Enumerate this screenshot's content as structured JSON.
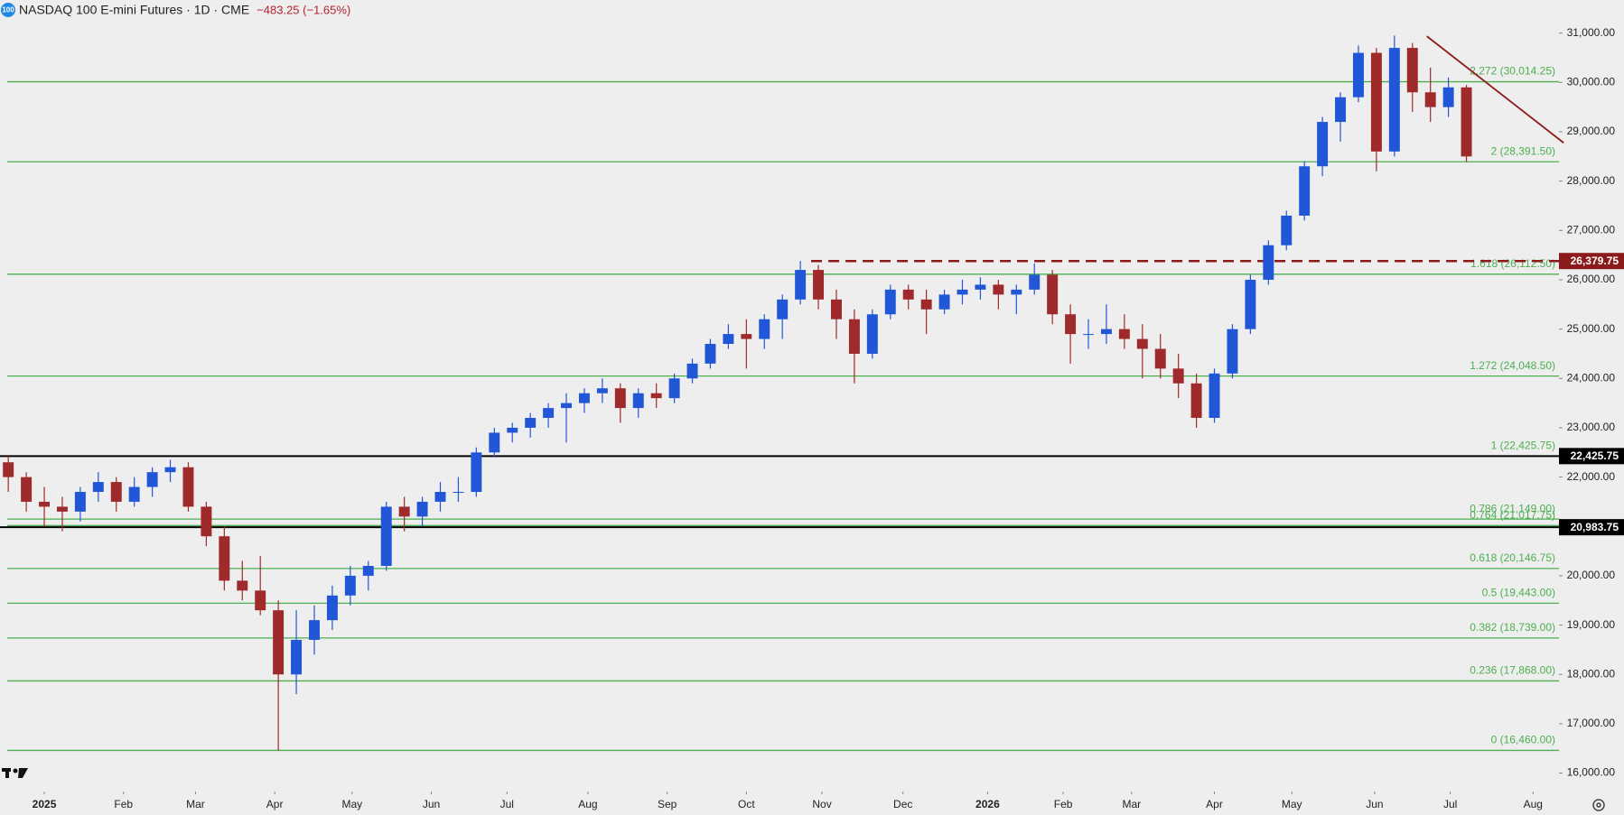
{
  "chart_data": {
    "type": "candlestick",
    "badge": "100",
    "title": "NASDAQ 100 E-mini Futures · 1D · CME",
    "change": "−483.25 (−1.65%)",
    "up_color": "#2157d6",
    "down_color": "#9e2a2b",
    "open": [
      22300,
      22000,
      21500,
      21400,
      21300,
      21700,
      21900,
      21500,
      21800,
      22100,
      22200,
      21400,
      20800,
      19900,
      19700,
      19300,
      18000,
      18700,
      19100,
      19600,
      20000,
      20200,
      21400,
      21200,
      21500,
      21700,
      21700,
      22500,
      22900,
      23000,
      23200,
      23400,
      23500,
      23700,
      23800,
      23400,
      23700,
      23600,
      24000,
      24300,
      24700,
      24900,
      24800,
      25200,
      25600,
      26200,
      25600,
      25200,
      24500,
      25300,
      25800,
      25600,
      25400,
      25700,
      25800,
      25900,
      25700,
      25800,
      26100,
      25300,
      24900,
      24900,
      25000,
      24800,
      24600,
      24200,
      23900,
      23200,
      24100,
      25000,
      26000,
      26700,
      27300,
      28300,
      29200,
      29700,
      30600,
      28600,
      30700,
      29800,
      29500,
      29900
    ],
    "high": [
      22425.75,
      22100,
      21800,
      21600,
      21800,
      22100,
      22000,
      22000,
      22200,
      22350,
      22300,
      21500,
      21000,
      20300,
      20400,
      19500,
      19300,
      19400,
      19800,
      20200,
      20300,
      21500,
      21600,
      21600,
      21900,
      22000,
      22600,
      23000,
      23100,
      23300,
      23500,
      23700,
      23800,
      24000,
      23900,
      23800,
      23900,
      24100,
      24400,
      24800,
      25100,
      25200,
      25300,
      25700,
      26379.75,
      26300,
      25800,
      25400,
      25400,
      25900,
      25900,
      25800,
      25800,
      26000,
      26050,
      26000,
      25900,
      26330,
      26200,
      25500,
      25200,
      25500,
      25300,
      25100,
      24900,
      24500,
      24100,
      24200,
      25100,
      26100,
      26800,
      27400,
      28400,
      29300,
      29800,
      30750,
      30700,
      30950,
      30800,
      30300,
      30100,
      29950
    ],
    "low": [
      21700,
      21300,
      21000,
      20900,
      21100,
      21500,
      21300,
      21400,
      21600,
      21900,
      21300,
      20600,
      19700,
      19500,
      19200,
      16460,
      17600,
      18400,
      18900,
      19400,
      19700,
      20100,
      20900,
      21000,
      21300,
      21500,
      21600,
      22400,
      22700,
      22800,
      23000,
      22700,
      23300,
      23500,
      23100,
      23200,
      23400,
      23500,
      23900,
      24200,
      24600,
      24200,
      24600,
      24800,
      25500,
      25400,
      24800,
      23900,
      24400,
      25200,
      25400,
      24900,
      25300,
      25500,
      25600,
      25400,
      25300,
      25700,
      25100,
      24300,
      24600,
      24700,
      24600,
      24000,
      24000,
      23600,
      23000,
      23100,
      24000,
      24900,
      25900,
      26600,
      27200,
      28100,
      28800,
      29600,
      28200,
      28500,
      29400,
      29200,
      29300,
      28391.5
    ],
    "close": [
      22000,
      21500,
      21400,
      21300,
      21700,
      21900,
      21500,
      21800,
      22100,
      22200,
      21400,
      20800,
      19900,
      19700,
      19300,
      18000,
      18700,
      19100,
      19600,
      20000,
      20200,
      21400,
      21200,
      21500,
      21700,
      21700,
      22500,
      22900,
      23000,
      23200,
      23400,
      23500,
      23700,
      23800,
      23400,
      23700,
      23600,
      24000,
      24300,
      24700,
      24900,
      24800,
      25200,
      25600,
      26200,
      25600,
      25200,
      24500,
      25300,
      25800,
      25600,
      25400,
      25700,
      25800,
      25900,
      25700,
      25800,
      26100,
      25300,
      24900,
      24900,
      25000,
      24800,
      24600,
      24200,
      23900,
      23200,
      24100,
      25000,
      26000,
      26700,
      27300,
      28300,
      29200,
      29700,
      30600,
      28600,
      30700,
      29800,
      29500,
      29900,
      28500
    ],
    "xlim": [
      -0.46,
      86.14
    ],
    "xticks": [
      {
        "value": 2,
        "label": "2025"
      },
      {
        "value": 6.4,
        "label": "Feb"
      },
      {
        "value": 10.4,
        "label": "Mar"
      },
      {
        "value": 14.8,
        "label": "Apr"
      },
      {
        "value": 19.1,
        "label": "May"
      },
      {
        "value": 23.5,
        "label": "Jun"
      },
      {
        "value": 27.7,
        "label": "Jul"
      },
      {
        "value": 32.2,
        "label": "Aug"
      },
      {
        "value": 36.6,
        "label": "Sep"
      },
      {
        "value": 41,
        "label": "Oct"
      },
      {
        "value": 45.2,
        "label": "Nov"
      },
      {
        "value": 49.7,
        "label": "Dec"
      },
      {
        "value": 54.4,
        "label": "2026"
      },
      {
        "value": 58.6,
        "label": "Feb"
      },
      {
        "value": 62.4,
        "label": "Mar"
      },
      {
        "value": 67,
        "label": "Apr"
      },
      {
        "value": 71.3,
        "label": "May"
      },
      {
        "value": 75.9,
        "label": "Jun"
      },
      {
        "value": 80.1,
        "label": "Jul"
      },
      {
        "value": 84.7,
        "label": "Aug"
      }
    ],
    "ylim": [
      15626,
      31671
    ],
    "yticks": [
      {
        "value": 16000,
        "label": "16,000.00"
      },
      {
        "value": 17000,
        "label": "17,000.00"
      },
      {
        "value": 18000,
        "label": "18,000.00"
      },
      {
        "value": 19000,
        "label": "19,000.00"
      },
      {
        "value": 20000,
        "label": "20,000.00"
      },
      {
        "value": 21000,
        "label": "21,000.00"
      },
      {
        "value": 22000,
        "label": "22,000.00"
      },
      {
        "value": 23000,
        "label": "23,000.00"
      },
      {
        "value": 24000,
        "label": "24,000.00"
      },
      {
        "value": 25000,
        "label": "25,000.00"
      },
      {
        "value": 26000,
        "label": "26,000.00"
      },
      {
        "value": 27000,
        "label": "27,000.00"
      },
      {
        "value": 28000,
        "label": "28,000.00"
      },
      {
        "value": 29000,
        "label": "29,000.00"
      },
      {
        "value": 30000,
        "label": "30,000.00"
      },
      {
        "value": 31000,
        "label": "31,000.00"
      }
    ],
    "level_color": "#4caf50",
    "levels": [
      {
        "value": 30014.25,
        "label": "2.272 (30,014.25)"
      },
      {
        "value": 28391.5,
        "label": "2 (28,391.50)"
      },
      {
        "value": 26112.5,
        "label": "1.618 (26,112.50)"
      },
      {
        "value": 24048.5,
        "label": "1.272 (24,048.50)"
      },
      {
        "value": 22425.75,
        "label": "1 (22,425.75)"
      },
      {
        "value": 21149,
        "label": "0.786 (21,149.00)"
      },
      {
        "value": 21017.75,
        "label": "0.764 (21,017.75)"
      },
      {
        "value": 20146.75,
        "label": "0.618 (20,146.75)"
      },
      {
        "value": 19443,
        "label": "0.5 (19,443.00)"
      },
      {
        "value": 18739,
        "label": "0.382 (18,739.00)"
      },
      {
        "value": 17868,
        "label": "0.236 (17,868.00)"
      },
      {
        "value": 16460,
        "label": "0 (16,460.00)"
      }
    ],
    "hlines": [
      {
        "value": 22425.75,
        "label": "22,425.75",
        "color": "#000000",
        "dashed": false,
        "from": -0.46
      },
      {
        "value": 20983.75,
        "label": "20,983.75",
        "color": "#000000",
        "dashed": false,
        "from": -0.46
      },
      {
        "value": 26379.75,
        "label": "26,379.75",
        "color": "#8b1a1a",
        "dashed": true,
        "from": 44.6
      }
    ],
    "trendline": {
      "x": [
        78.8,
        86.4
      ],
      "y": [
        30937,
        28776
      ],
      "color": "#8b1a1a"
    }
  }
}
